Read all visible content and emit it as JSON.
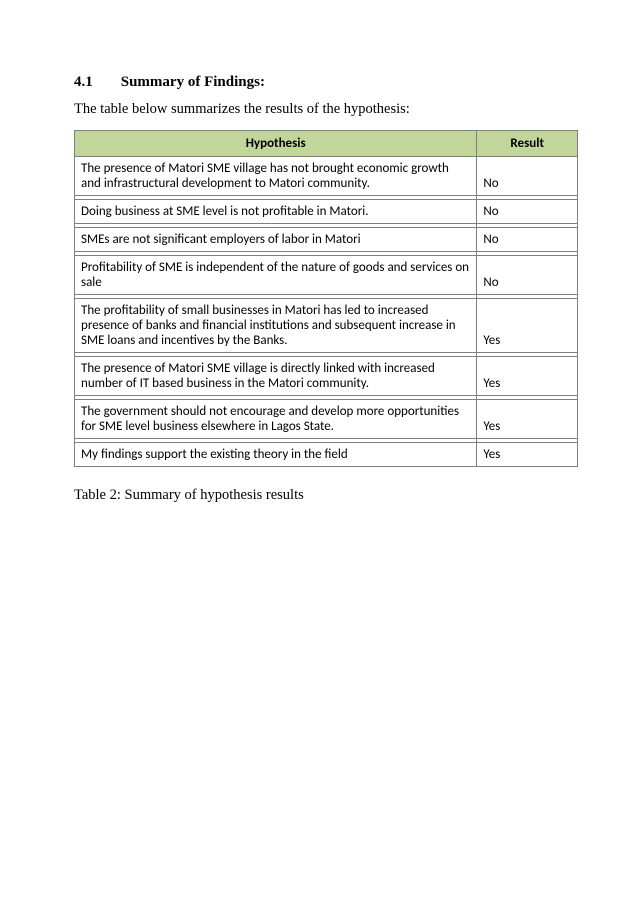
{
  "heading": {
    "number": "4.1",
    "title": "Summary of Findings:"
  },
  "intro": "The table below summarizes the results of the hypothesis:",
  "table": {
    "header_hypothesis": "Hypothesis",
    "header_result": "Result",
    "header_bg": "#c2d69b",
    "border_color": "#808080",
    "rows": [
      {
        "hypothesis": "The presence of Matori SME village has not brought economic growth and infrastructural development to Matori community.",
        "result": "No"
      },
      {
        "hypothesis": "Doing business at SME level is not profitable in Matori.",
        "result": "No"
      },
      {
        "hypothesis": "SMEs are not significant employers of labor in Matori",
        "result": "No"
      },
      {
        "hypothesis": "Profitability of SME is independent of the nature of goods and services on sale",
        "result": "No"
      },
      {
        "hypothesis": "The profitability of small businesses in Matori has led to increased presence of banks and financial institutions and subsequent increase in SME loans and incentives by the Banks.",
        "result": "Yes"
      },
      {
        "hypothesis": "The presence of Matori SME village is directly linked with increased number of IT based business in the Matori community.",
        "result": "Yes"
      },
      {
        "hypothesis": "The government should not encourage and develop more opportunities for SME level business elsewhere in Lagos State.",
        "result": "Yes"
      },
      {
        "hypothesis": "My findings support the existing theory in the field",
        "result": "Yes"
      }
    ]
  },
  "caption": "Table 2: Summary of hypothesis results"
}
